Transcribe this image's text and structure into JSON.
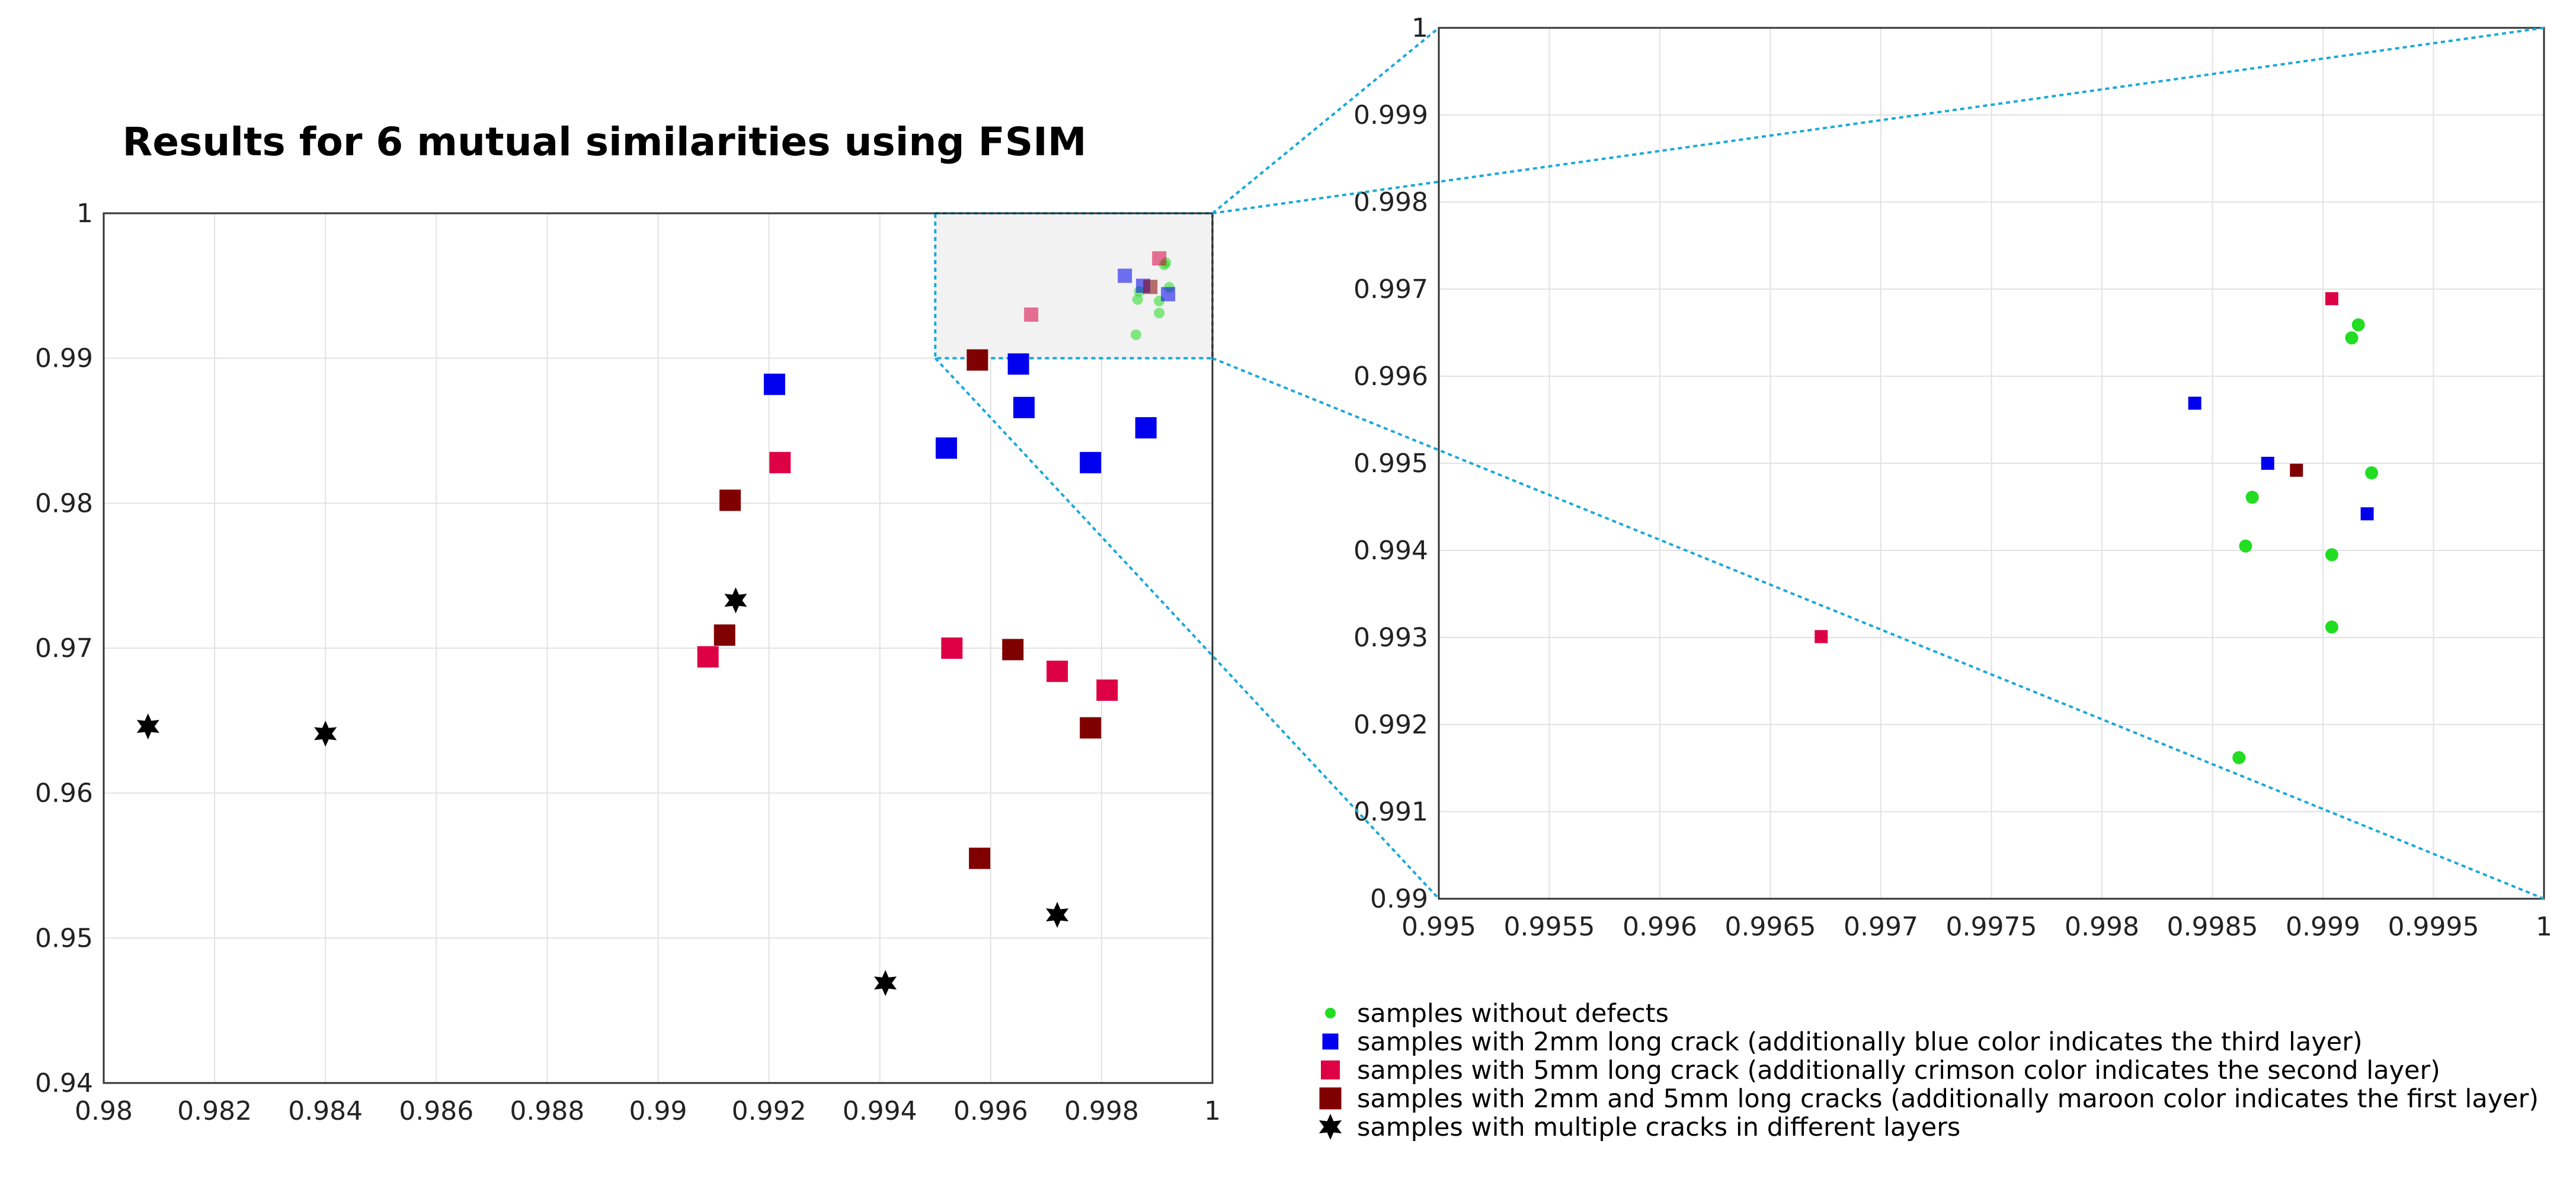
{
  "chart_data": [
    {
      "type": "scatter",
      "title": "Results for 6 mutual similarities using FSIM",
      "xlabel": "",
      "ylabel": "",
      "xlim": [
        0.98,
        1.0
      ],
      "ylim": [
        0.94,
        1.0
      ],
      "xticks": [
        "0.98",
        "0.982",
        "0.984",
        "0.986",
        "0.988",
        "0.99",
        "0.992",
        "0.994",
        "0.996",
        "0.998",
        "1"
      ],
      "yticks": [
        "0.94",
        "0.95",
        "0.96",
        "0.97",
        "0.98",
        "0.99",
        "1"
      ],
      "grid": true,
      "zoom_region": {
        "x": [
          0.995,
          1.0
        ],
        "y": [
          0.99,
          1.0
        ]
      },
      "series": [
        {
          "name": "samples without defects",
          "marker": "circle",
          "color": "#22dd22",
          "points": [
            [
              0.99862,
              0.99162
            ],
            [
              0.99865,
              0.99405
            ],
            [
              0.99868,
              0.99461
            ],
            [
              0.99904,
              0.99395
            ],
            [
              0.99904,
              0.99312
            ],
            [
              0.99913,
              0.99644
            ],
            [
              0.99916,
              0.99659
            ],
            [
              0.99922,
              0.99489
            ]
          ]
        },
        {
          "name": "samples with 2mm long crack (additionally blue color indicates the third layer)",
          "marker": "square",
          "color": "#0000ee",
          "points": [
            [
              0.99842,
              0.99569
            ],
            [
              0.99875,
              0.995
            ],
            [
              0.9992,
              0.99442
            ],
            [
              0.9921,
              0.9882
            ],
            [
              0.9966,
              0.9866
            ],
            [
              0.9952,
              0.9838
            ],
            [
              0.9978,
              0.9828
            ],
            [
              0.9988,
              0.9852
            ],
            [
              0.9965,
              0.9896
            ]
          ]
        },
        {
          "name": "samples with 5mm long crack (additionally crimson color indicates the second layer)",
          "marker": "square",
          "color": "#dd0044",
          "points": [
            [
              0.99904,
              0.99689
            ],
            [
              0.99673,
              0.99301
            ],
            [
              0.9922,
              0.9828
            ],
            [
              0.9909,
              0.9694
            ],
            [
              0.9953,
              0.97
            ],
            [
              0.9972,
              0.9684
            ],
            [
              0.9981,
              0.9671
            ]
          ]
        },
        {
          "name": "samples with 2mm and 5mm long cracks (additionally maroon color indicates the first layer)",
          "marker": "square",
          "color": "#800000",
          "points": [
            [
              0.99888,
              0.99492
            ],
            [
              0.99576,
              0.98988
            ],
            [
              0.9913,
              0.9802
            ],
            [
              0.9912,
              0.9709
            ],
            [
              0.9964,
              0.9699
            ],
            [
              0.9978,
              0.9645
            ],
            [
              0.9958,
              0.9555
            ]
          ]
        },
        {
          "name": "samples with multiple cracks in different layers",
          "marker": "star",
          "color": "#000000",
          "points": [
            [
              0.9808,
              0.9646
            ],
            [
              0.984,
              0.9641
            ],
            [
              0.9914,
              0.9733
            ],
            [
              0.9941,
              0.9469
            ],
            [
              0.9972,
              0.9516
            ]
          ]
        }
      ]
    },
    {
      "type": "scatter",
      "title": "",
      "xlabel": "",
      "ylabel": "",
      "xlim": [
        0.995,
        1.0
      ],
      "ylim": [
        0.99,
        1.0
      ],
      "xticks": [
        "0.995",
        "0.9955",
        "0.996",
        "0.9965",
        "0.997",
        "0.9975",
        "0.998",
        "0.9985",
        "0.999",
        "0.9995",
        "1"
      ],
      "yticks": [
        "0.99",
        "0.991",
        "0.992",
        "0.993",
        "0.994",
        "0.995",
        "0.996",
        "0.997",
        "0.998",
        "0.999",
        "1"
      ],
      "grid": true,
      "series": [
        {
          "name": "samples without defects",
          "marker": "circle",
          "color": "#22dd22",
          "points": [
            [
              0.99862,
              0.99162
            ],
            [
              0.99865,
              0.99405
            ],
            [
              0.99868,
              0.99461
            ],
            [
              0.99904,
              0.99395
            ],
            [
              0.99904,
              0.99312
            ],
            [
              0.99913,
              0.99644
            ],
            [
              0.99916,
              0.99659
            ],
            [
              0.99922,
              0.99489
            ]
          ]
        },
        {
          "name": "samples with 2mm long crack",
          "marker": "square",
          "color": "#0000ee",
          "points": [
            [
              0.99842,
              0.99569
            ],
            [
              0.99875,
              0.995
            ],
            [
              0.9992,
              0.99442
            ]
          ]
        },
        {
          "name": "samples with 5mm long crack",
          "marker": "square",
          "color": "#dd0044",
          "points": [
            [
              0.99904,
              0.99689
            ],
            [
              0.99673,
              0.99301
            ]
          ]
        },
        {
          "name": "samples with 2mm and 5mm long cracks",
          "marker": "square",
          "color": "#800000",
          "points": [
            [
              0.99888,
              0.99492
            ]
          ]
        }
      ]
    }
  ],
  "legend": [
    {
      "label": "samples without defects",
      "marker": "circle",
      "color": "#22dd22"
    },
    {
      "label": "samples with 2mm long crack (additionally blue color indicates the third layer)",
      "marker": "square",
      "color": "#0000ee"
    },
    {
      "label": "samples with 5mm long crack (additionally crimson color indicates the second layer)",
      "marker": "square",
      "color": "#dd0044"
    },
    {
      "label": "samples with 2mm and 5mm long cracks (additionally maroon color indicates the first layer)",
      "marker": "square",
      "color": "#800000"
    },
    {
      "label": "samples with multiple cracks in different layers",
      "marker": "star",
      "color": "#000000"
    }
  ]
}
